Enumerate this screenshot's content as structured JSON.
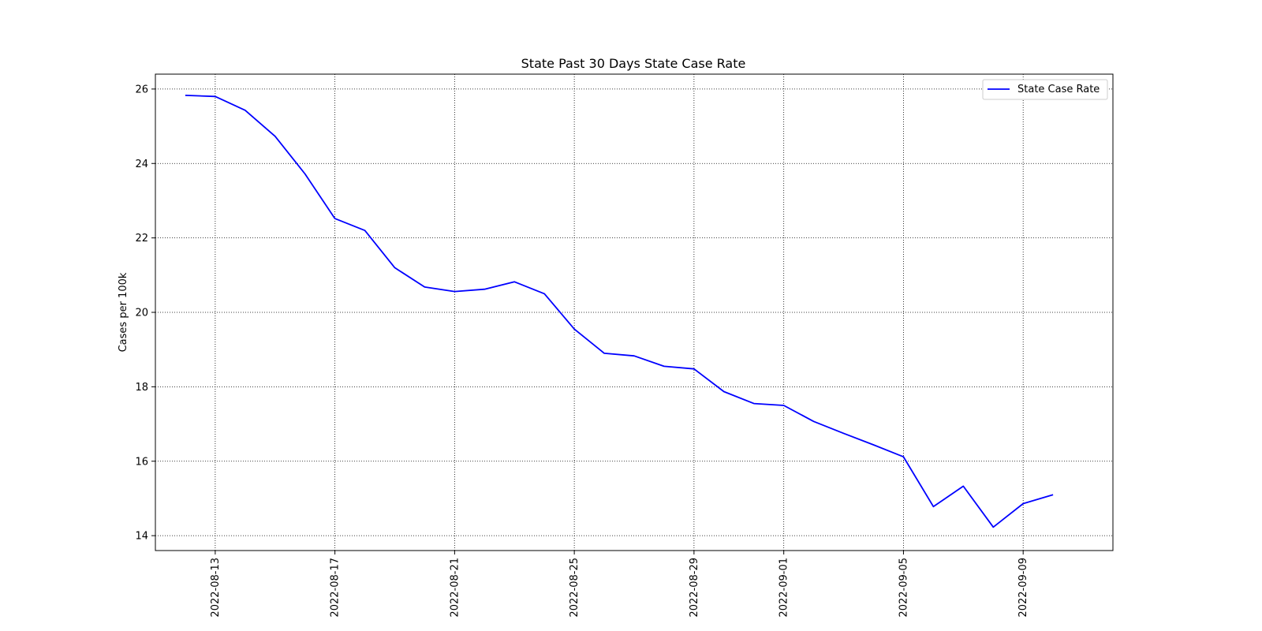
{
  "chart_data": {
    "type": "line",
    "title": "State Past 30 Days  State Case Rate",
    "xlabel": "",
    "ylabel": "Cases per 100k",
    "x_ticks": [
      "2022-08-13",
      "2022-08-17",
      "2022-08-21",
      "2022-08-25",
      "2022-08-29",
      "2022-09-01",
      "2022-09-05",
      "2022-09-09"
    ],
    "y_ticks": [
      14,
      16,
      18,
      20,
      22,
      24,
      26
    ],
    "xlim": [
      "2022-08-11",
      "2022-09-12"
    ],
    "ylim": [
      13.6,
      26.4
    ],
    "grid": true,
    "legend_position": "top-right",
    "series": [
      {
        "name": "State Case Rate",
        "color": "#0000ff",
        "x": [
          "2022-08-12",
          "2022-08-13",
          "2022-08-14",
          "2022-08-15",
          "2022-08-16",
          "2022-08-17",
          "2022-08-18",
          "2022-08-19",
          "2022-08-20",
          "2022-08-21",
          "2022-08-22",
          "2022-08-23",
          "2022-08-24",
          "2022-08-25",
          "2022-08-26",
          "2022-08-27",
          "2022-08-28",
          "2022-08-29",
          "2022-08-30",
          "2022-08-31",
          "2022-09-01",
          "2022-09-02",
          "2022-09-03",
          "2022-09-04",
          "2022-09-05",
          "2022-09-06",
          "2022-09-07",
          "2022-09-08",
          "2022-09-09",
          "2022-09-10"
        ],
        "values": [
          25.83,
          25.8,
          25.43,
          24.73,
          23.72,
          22.52,
          22.2,
          21.2,
          20.68,
          20.56,
          20.62,
          20.82,
          20.5,
          19.55,
          18.9,
          18.83,
          18.55,
          18.48,
          17.87,
          17.55,
          17.5,
          17.07,
          16.75,
          16.44,
          16.12,
          14.78,
          15.33,
          14.23,
          14.86,
          15.1
        ]
      }
    ]
  }
}
